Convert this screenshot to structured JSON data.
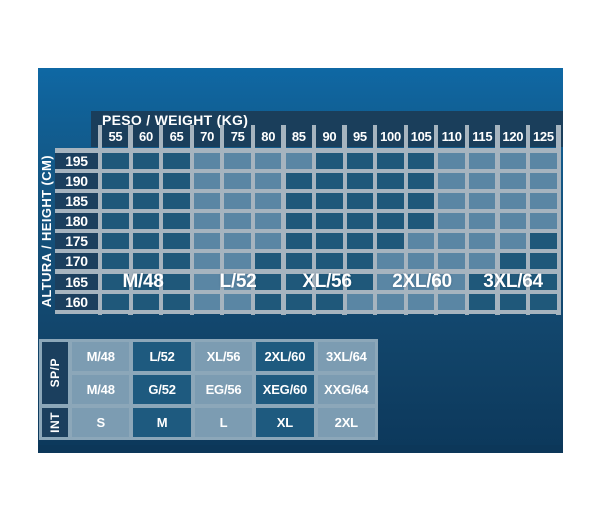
{
  "chart_data": {
    "type": "heatmap",
    "title": "PESO / WEIGHT (KG)",
    "xlabel": "PESO / WEIGHT (KG)",
    "ylabel": "ALTURA / HEIGHT (CM)",
    "x_weights_kg": [
      55,
      60,
      65,
      70,
      75,
      80,
      85,
      90,
      95,
      100,
      105,
      110,
      115,
      120,
      125
    ],
    "y_heights_cm": [
      195,
      190,
      185,
      180,
      175,
      170,
      165,
      160
    ],
    "size_zone_labels": [
      "M/48",
      "L/52",
      "XL/56",
      "2XL/60",
      "3XL/64"
    ],
    "dark_cell_matrix": [
      [
        1,
        1,
        1,
        0,
        0,
        0,
        0,
        1,
        1,
        1,
        1,
        0,
        0,
        0,
        0
      ],
      [
        1,
        1,
        1,
        0,
        0,
        0,
        1,
        1,
        1,
        1,
        1,
        0,
        0,
        0,
        0
      ],
      [
        1,
        1,
        1,
        0,
        0,
        0,
        1,
        1,
        1,
        1,
        1,
        0,
        0,
        0,
        0
      ],
      [
        1,
        1,
        1,
        0,
        0,
        0,
        1,
        1,
        1,
        1,
        1,
        0,
        0,
        0,
        0
      ],
      [
        1,
        1,
        1,
        0,
        0,
        0,
        1,
        1,
        1,
        1,
        0,
        0,
        0,
        0,
        1
      ],
      [
        1,
        1,
        1,
        0,
        0,
        1,
        1,
        1,
        1,
        0,
        0,
        0,
        0,
        1,
        1
      ],
      [
        1,
        1,
        1,
        0,
        0,
        1,
        1,
        1,
        1,
        0,
        0,
        0,
        1,
        1,
        1
      ],
      [
        1,
        1,
        1,
        0,
        0,
        1,
        1,
        1,
        0,
        0,
        0,
        0,
        1,
        1,
        1
      ]
    ],
    "grid": true,
    "legend_position": "none",
    "conversion_table": {
      "groups": [
        {
          "label": "SP/P",
          "rows": [
            [
              "M/48",
              "L/52",
              "XL/56",
              "2XL/60",
              "3XL/64"
            ],
            [
              "M/48",
              "G/52",
              "EG/56",
              "XEG/60",
              "XXG/64"
            ]
          ]
        },
        {
          "label": "INT",
          "rows": [
            [
              "S",
              "M",
              "L",
              "XL",
              "2XL"
            ]
          ]
        }
      ],
      "column_shading": [
        "light",
        "dark",
        "light",
        "dark",
        "light"
      ]
    }
  },
  "colors": {
    "panel_top": "#0F68A4",
    "panel_bottom": "#0C385B",
    "header_bar": "#1A3E5B",
    "grid_line": "#A6B4BF",
    "cell_dark": "#1F587A",
    "cell_light": "#5A86A4",
    "label_block": "#1B3F5E",
    "table_frame": "#8CA7B9",
    "table_cell_light": "#7C9CB2",
    "table_cell_dark": "#1E5A7F",
    "text": "#FFFFFF"
  }
}
